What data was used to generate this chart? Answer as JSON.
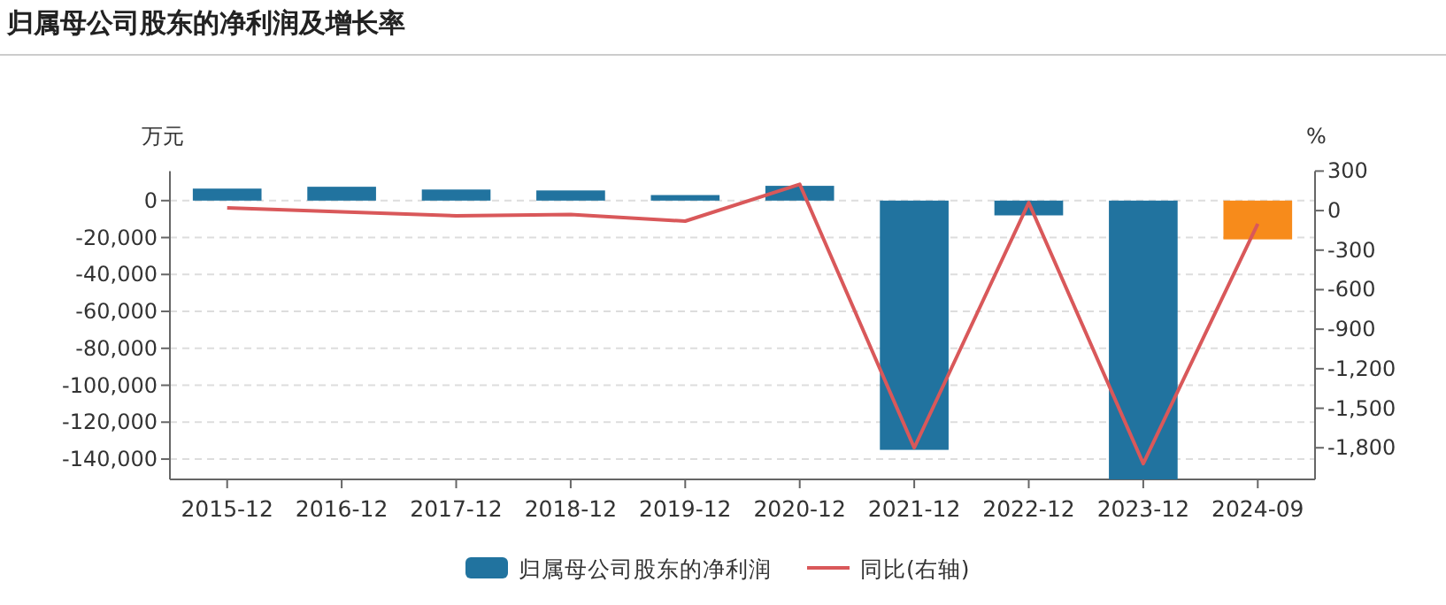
{
  "chart_data": {
    "type": "bar",
    "title": "归属母公司股东的净利润及增长率",
    "ylabel": "万元",
    "y2label": "%",
    "categories": [
      "2015-12",
      "2016-12",
      "2017-12",
      "2018-12",
      "2019-12",
      "2020-12",
      "2021-12",
      "2022-12",
      "2023-12",
      "2024-09"
    ],
    "series": [
      {
        "name": "归属母公司股东的净利润",
        "color": "#21739f",
        "colors": [
          "#21739f",
          "#21739f",
          "#21739f",
          "#21739f",
          "#21739f",
          "#21739f",
          "#21739f",
          "#21739f",
          "#21739f",
          "#f78b1b"
        ],
        "values": [
          6500,
          7500,
          6000,
          5500,
          3000,
          8000,
          -135000,
          -8000,
          -151000,
          -21000
        ]
      },
      {
        "name": "同比(右轴)",
        "type": "line",
        "axis": "y2",
        "color": "#d9585a",
        "values": [
          20,
          -10,
          -40,
          -30,
          -80,
          200,
          -1800,
          60,
          -1920,
          -100
        ]
      }
    ],
    "ylim": [
      -151000,
      16000
    ],
    "yticks": [
      0,
      {
        "value": -20000,
        "label": "-20,000"
      },
      {
        "value": -40000,
        "label": "-40,000"
      },
      {
        "value": -60000,
        "label": "-60,000"
      },
      {
        "value": -80000,
        "label": "-80,000"
      },
      {
        "value": -100000,
        "label": "-100,000"
      },
      {
        "value": -120000,
        "label": "-120,000"
      },
      {
        "value": -140000,
        "label": "-140,000"
      }
    ],
    "y2lim": [
      -2040,
      300
    ],
    "y2ticks": [
      300,
      0,
      -300,
      -600,
      -900,
      {
        "value": -1200,
        "label": "-1,200"
      },
      {
        "value": -1500,
        "label": "-1,500"
      },
      {
        "value": -1800,
        "label": "-1,800"
      }
    ],
    "grid": "y",
    "legend": "bottom"
  }
}
